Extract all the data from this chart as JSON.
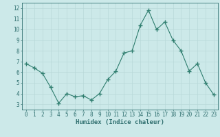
{
  "x": [
    0,
    1,
    2,
    3,
    4,
    5,
    6,
    7,
    8,
    9,
    10,
    11,
    12,
    13,
    14,
    15,
    16,
    17,
    18,
    19,
    20,
    21,
    22,
    23
  ],
  "y": [
    6.8,
    6.4,
    5.9,
    4.6,
    3.1,
    4.0,
    3.7,
    3.8,
    3.4,
    4.0,
    5.3,
    6.1,
    7.8,
    8.0,
    10.4,
    11.8,
    10.0,
    10.7,
    9.0,
    8.0,
    6.1,
    6.8,
    5.0,
    3.9
  ],
  "line_color": "#2e7d6e",
  "marker": "+",
  "marker_size": 4,
  "xlim": [
    -0.5,
    23.5
  ],
  "ylim": [
    2.5,
    12.5
  ],
  "yticks": [
    3,
    4,
    5,
    6,
    7,
    8,
    9,
    10,
    11,
    12
  ],
  "xticks": [
    0,
    1,
    2,
    3,
    4,
    5,
    6,
    7,
    8,
    9,
    10,
    11,
    12,
    13,
    14,
    15,
    16,
    17,
    18,
    19,
    20,
    21,
    22,
    23
  ],
  "xlabel": "Humidex (Indice chaleur)",
  "bg_color": "#cce9e9",
  "grid_color": "#b8d8d8",
  "axis_color": "#2e6e6e",
  "label_fontsize": 5.5,
  "xlabel_fontsize": 6.5
}
